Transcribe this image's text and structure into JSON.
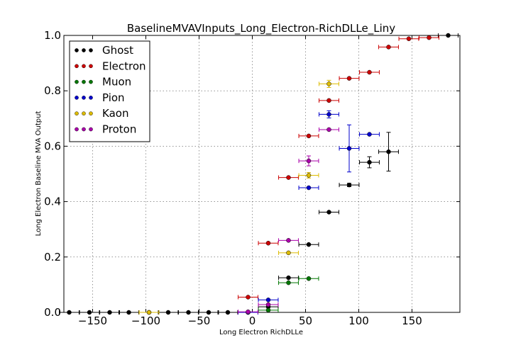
{
  "chart_data": {
    "type": "scatter",
    "title": "BaselineMVAVInputs_Long_Electron-RichDLLe_Liny",
    "xlabel": "Long Electron RichDLLe",
    "ylabel": "Long Electron Baseline MVA Output",
    "xlim": [
      -177,
      195
    ],
    "ylim": [
      0.0,
      1.0
    ],
    "xticks": [
      -150,
      -100,
      -50,
      0,
      50,
      100,
      150
    ],
    "xtick_labels": [
      "−150",
      "−100",
      "−50",
      "0",
      "50",
      "100",
      "150"
    ],
    "yticks": [
      0.0,
      0.2,
      0.4,
      0.6,
      0.8,
      1.0
    ],
    "ytick_labels": [
      "0.0",
      "0.2",
      "0.4",
      "0.6",
      "0.8",
      "1.0"
    ],
    "grid": true,
    "legend_position": "top-left",
    "bin_half_width": 9.3,
    "series": [
      {
        "name": "Ghost",
        "color": "#000000",
        "points": [
          {
            "x": -172,
            "y": 0.0,
            "yerr": 0
          },
          {
            "x": -153,
            "y": 0.0,
            "yerr": 0
          },
          {
            "x": -134,
            "y": 0.0,
            "yerr": 0
          },
          {
            "x": -116,
            "y": 0.0,
            "yerr": 0
          },
          {
            "x": -97,
            "y": 0.0,
            "yerr": 0
          },
          {
            "x": -79,
            "y": 0.0,
            "yerr": 0
          },
          {
            "x": -60,
            "y": 0.0,
            "yerr": 0
          },
          {
            "x": -41,
            "y": 0.0,
            "yerr": 0
          },
          {
            "x": -23,
            "y": 0.0,
            "yerr": 0
          },
          {
            "x": -4,
            "y": 0.0,
            "yerr": 0
          },
          {
            "x": 15,
            "y": 0.02,
            "yerr": 0
          },
          {
            "x": 34,
            "y": 0.125,
            "yerr": 0
          },
          {
            "x": 53,
            "y": 0.245,
            "yerr": 0
          },
          {
            "x": 72,
            "y": 0.362,
            "yerr": 0
          },
          {
            "x": 91,
            "y": 0.46,
            "yerr": 0.006
          },
          {
            "x": 110,
            "y": 0.542,
            "yerr": 0.02
          },
          {
            "x": 128,
            "y": 0.58,
            "yerr": 0.07
          },
          {
            "x": 184,
            "y": 1.0,
            "yerr": 0
          }
        ]
      },
      {
        "name": "Electron",
        "color": "#cc0000",
        "points": [
          {
            "x": -4,
            "y": 0.055,
            "yerr": 0
          },
          {
            "x": 15,
            "y": 0.25,
            "yerr": 0
          },
          {
            "x": 34,
            "y": 0.487,
            "yerr": 0
          },
          {
            "x": 53,
            "y": 0.637,
            "yerr": 0
          },
          {
            "x": 72,
            "y": 0.765,
            "yerr": 0
          },
          {
            "x": 91,
            "y": 0.845,
            "yerr": 0
          },
          {
            "x": 110,
            "y": 0.867,
            "yerr": 0
          },
          {
            "x": 128,
            "y": 0.958,
            "yerr": 0
          },
          {
            "x": 147,
            "y": 0.988,
            "yerr": 0
          },
          {
            "x": 166,
            "y": 0.992,
            "yerr": 0
          }
        ]
      },
      {
        "name": "Muon",
        "color": "#007700",
        "points": [
          {
            "x": 15,
            "y": 0.008,
            "yerr": 0
          },
          {
            "x": 34,
            "y": 0.107,
            "yerr": 0
          },
          {
            "x": 53,
            "y": 0.122,
            "yerr": 0
          }
        ]
      },
      {
        "name": "Pion",
        "color": "#0000cc",
        "points": [
          {
            "x": -4,
            "y": 0.0,
            "yerr": 0
          },
          {
            "x": 15,
            "y": 0.045,
            "yerr": 0
          },
          {
            "x": 53,
            "y": 0.45,
            "yerr": 0
          },
          {
            "x": 72,
            "y": 0.715,
            "yerr": 0.013
          },
          {
            "x": 91,
            "y": 0.592,
            "yerr": 0.085
          },
          {
            "x": 110,
            "y": 0.643,
            "yerr": 0
          }
        ]
      },
      {
        "name": "Kaon",
        "color": "#ddbb00",
        "points": [
          {
            "x": -97,
            "y": 0.0,
            "yerr": 0
          },
          {
            "x": 34,
            "y": 0.215,
            "yerr": 0
          },
          {
            "x": 53,
            "y": 0.495,
            "yerr": 0.01
          },
          {
            "x": 72,
            "y": 0.825,
            "yerr": 0.013
          }
        ]
      },
      {
        "name": "Proton",
        "color": "#aa00aa",
        "points": [
          {
            "x": -4,
            "y": 0.002,
            "yerr": 0
          },
          {
            "x": 15,
            "y": 0.028,
            "yerr": 0
          },
          {
            "x": 34,
            "y": 0.26,
            "yerr": 0
          },
          {
            "x": 53,
            "y": 0.547,
            "yerr": 0.018
          },
          {
            "x": 72,
            "y": 0.66,
            "yerr": 0
          }
        ]
      }
    ]
  }
}
